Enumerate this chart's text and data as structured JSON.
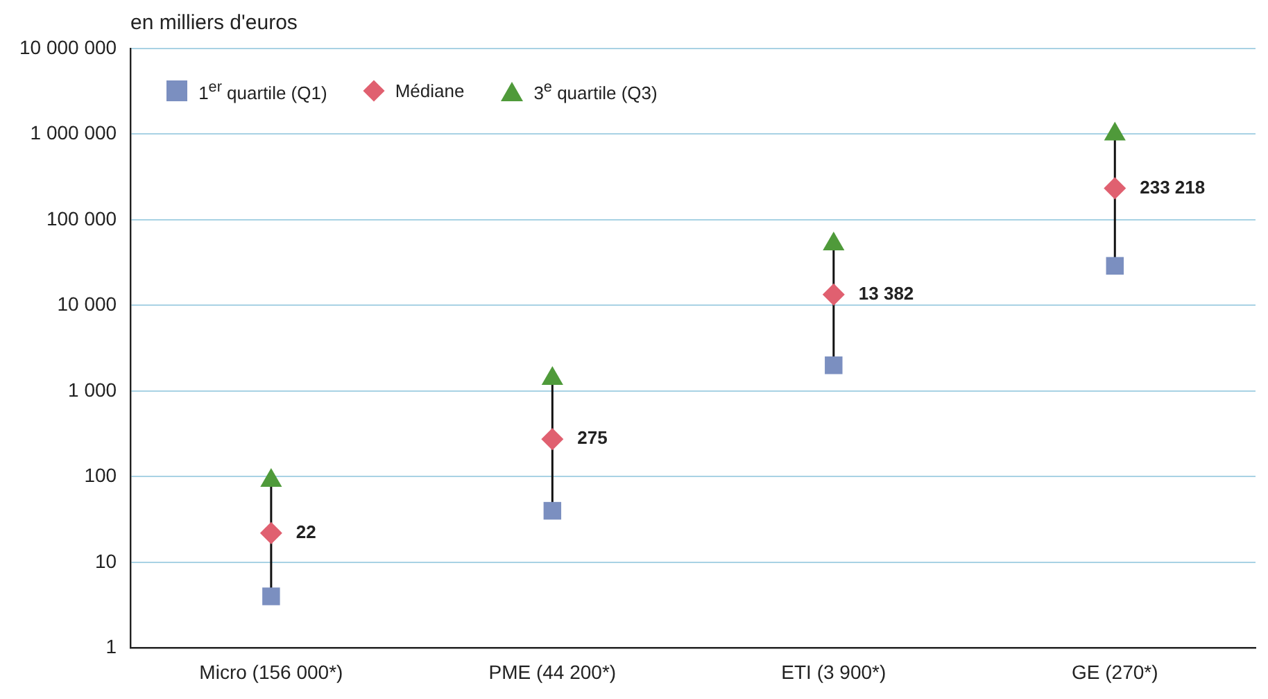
{
  "chart_data": {
    "type": "scatter",
    "ylabel": "en milliers d'euros",
    "categories": [
      "Micro (156 000*)",
      "PME (44 200*)",
      "ETI (3 900*)",
      "GE (270*)"
    ],
    "series": [
      {
        "name": "1$^{er}$ quartile (Q1)",
        "color": "#7b8fc0",
        "marker": "square",
        "values": [
          4,
          40,
          2000,
          29000
        ]
      },
      {
        "name": "Médiane",
        "color": "#e06070",
        "marker": "diamond",
        "values": [
          22,
          275,
          13382,
          233218
        ],
        "value_labels": [
          "22",
          "275",
          "13 382",
          "233 218"
        ]
      },
      {
        "name": "3$^{e}$ quartile (Q3)",
        "color": "#4f9a3a",
        "marker": "triangle",
        "values": [
          90,
          1400,
          52000,
          1000000
        ]
      }
    ],
    "log": "y",
    "ylim": [
      1,
      10000000
    ],
    "yticks": [
      1,
      10,
      100,
      {
        "value": 1000,
        "label": "1 000"
      },
      {
        "value": 10000,
        "label": "10 000"
      },
      {
        "value": 100000,
        "label": "100 000"
      },
      {
        "value": 1000000,
        "label": "1 000 000"
      },
      {
        "value": 10000000,
        "label": "10 000 000"
      }
    ],
    "grid": "y",
    "legend": "top left"
  }
}
